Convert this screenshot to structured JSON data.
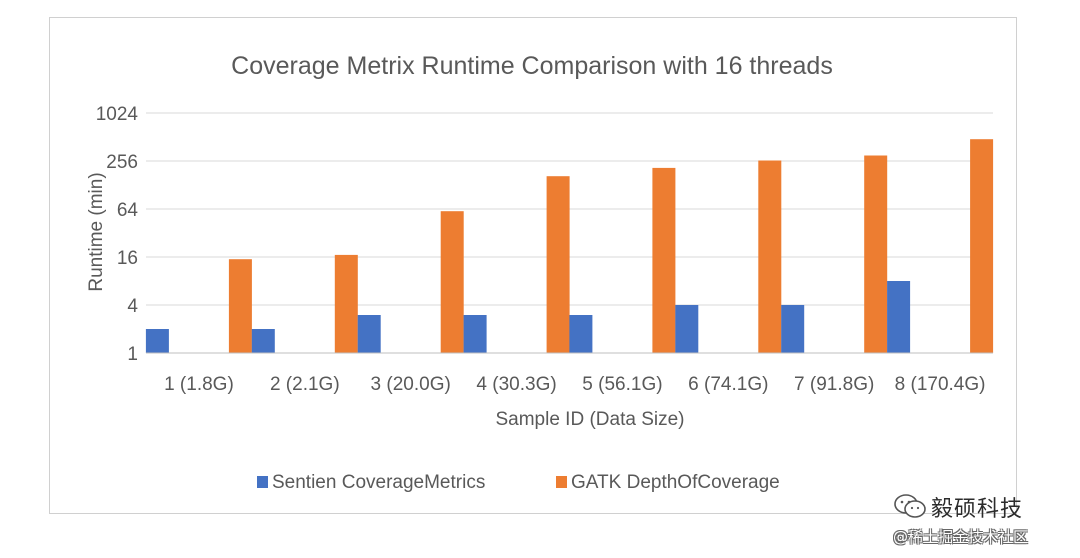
{
  "chart_data": {
    "type": "bar",
    "title": "Coverage Metrix Runtime Comparison with 16 threads",
    "xlabel": "Sample ID (Data Size)",
    "ylabel": "Runtime (min)",
    "yscale": "log2",
    "ylim": [
      1,
      1024
    ],
    "yticks": [
      1,
      4,
      16,
      64,
      256,
      1024
    ],
    "grid": true,
    "legend_position": "bottom",
    "categories": [
      "1 (1.8G)",
      "2 (2.1G)",
      "3 (20.0G)",
      "4 (30.3G)",
      "5 (56.1G)",
      "6 (74.1G)",
      "7 (91.8G)",
      "8 (170.4G)"
    ],
    "series": [
      {
        "name": "Sentien CoverageMetrics",
        "color": "#4472C4",
        "values": [
          2.0,
          2.0,
          3.0,
          3.0,
          3.0,
          4.0,
          4.0,
          8.0
        ]
      },
      {
        "name": "GATK DepthOfCoverage",
        "color": "#ED7D31",
        "values": [
          15,
          17,
          60,
          165,
          210,
          260,
          300,
          480
        ]
      }
    ]
  },
  "watermark": {
    "logo_icon": "wechat-icon",
    "account_name": "毅硕科技",
    "community": "@稀土掘金技术社区"
  }
}
